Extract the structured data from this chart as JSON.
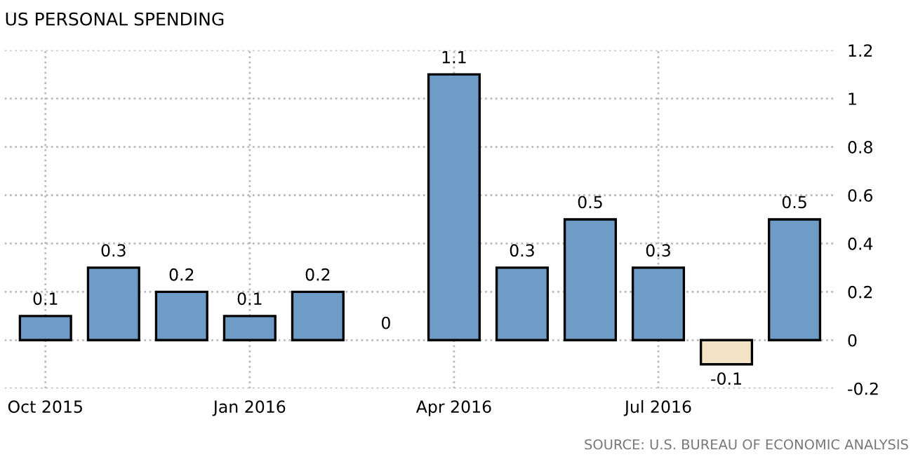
{
  "chart_data": {
    "type": "bar",
    "title": "US PERSONAL SPENDING",
    "categories": [
      "Oct 2015",
      null,
      null,
      "Jan 2016",
      null,
      null,
      "Apr 2016",
      null,
      null,
      "Jul 2016",
      null,
      null
    ],
    "values": [
      0.1,
      0.3,
      0.2,
      0.1,
      0.2,
      0,
      1.1,
      0.3,
      0.5,
      0.3,
      -0.1,
      0.5
    ],
    "colors": [
      "#6f9cc6",
      "#6f9cc6",
      "#6f9cc6",
      "#6f9cc6",
      "#6f9cc6",
      "#6f9cc6",
      "#6f9cc6",
      "#6f9cc6",
      "#6f9cc6",
      "#6f9cc6",
      "#f3e2c4",
      "#6f9cc6"
    ],
    "ylim": [
      -0.2,
      1.2
    ],
    "yticks": [
      {
        "value": -0.2,
        "label": "-0.2"
      },
      0,
      0.2,
      0.4,
      0.6,
      0.8,
      1,
      1.2
    ],
    "data_labels": true,
    "grid": true,
    "annotations": [
      "SOURCE: U.S. BUREAU OF ECONOMIC ANALYSIS"
    ]
  }
}
